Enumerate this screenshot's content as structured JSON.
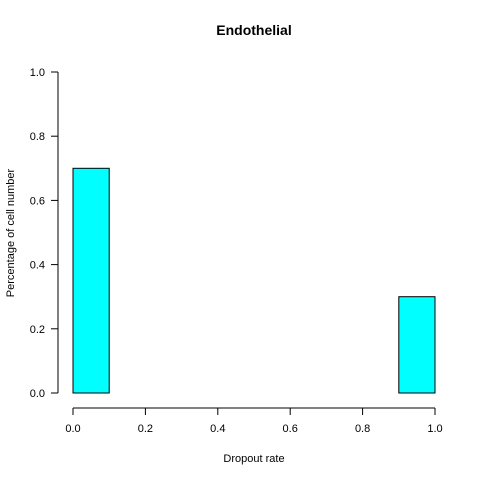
{
  "chart_data": {
    "type": "bar",
    "title": "Endothelial",
    "xlabel": "Dropout rate",
    "ylabel": "Percentage of cell number",
    "bins": [
      [
        0.0,
        0.1
      ],
      [
        0.1,
        0.2
      ],
      [
        0.2,
        0.3
      ],
      [
        0.3,
        0.4
      ],
      [
        0.4,
        0.5
      ],
      [
        0.5,
        0.6
      ],
      [
        0.6,
        0.7
      ],
      [
        0.7,
        0.8
      ],
      [
        0.8,
        0.9
      ],
      [
        0.9,
        1.0
      ]
    ],
    "values": [
      0.7,
      0,
      0,
      0,
      0,
      0,
      0,
      0,
      0,
      0.3
    ],
    "xlim": [
      0,
      1
    ],
    "ylim": [
      0,
      1
    ],
    "xticks": [
      0.0,
      0.2,
      0.4,
      0.6,
      0.8,
      1.0
    ],
    "xtick_labels": [
      "0.0",
      "0.2",
      "0.4",
      "0.6",
      "0.8",
      "1.0"
    ],
    "yticks": [
      0.0,
      0.2,
      0.4,
      0.6,
      0.8,
      1.0
    ],
    "ytick_labels": [
      "0.0",
      "0.2",
      "0.4",
      "0.6",
      "0.8",
      "1.0"
    ],
    "bar_color": "#00FFFF",
    "grid": false,
    "legend": "none"
  }
}
